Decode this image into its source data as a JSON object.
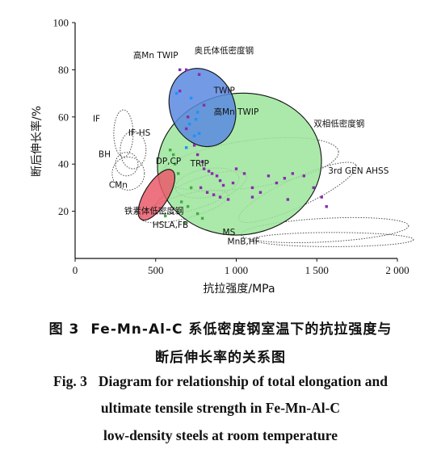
{
  "chart_data": {
    "type": "scatter",
    "xlabel": "抗拉强度/MPa",
    "ylabel": "断后伸长率/%",
    "xlim": [
      0,
      2000
    ],
    "ylim": [
      0,
      100
    ],
    "x_ticks": [
      {
        "value": 0,
        "label": "0"
      },
      {
        "value": 500,
        "label": "500"
      },
      {
        "value": 1000,
        "label": "1 000"
      },
      {
        "value": 1500,
        "label": "1 500"
      },
      {
        "value": 2000,
        "label": "2 000"
      }
    ],
    "y_ticks": [
      {
        "value": 20,
        "label": "20"
      },
      {
        "value": 40,
        "label": "40"
      },
      {
        "value": 60,
        "label": "60"
      },
      {
        "value": 80,
        "label": "80"
      },
      {
        "value": 100,
        "label": "100"
      }
    ],
    "regions": [
      {
        "name": "高Mn TWIP",
        "style": "dotted",
        "cx": 1080,
        "cy": 40,
        "rx": 560,
        "ry": 10,
        "rotate": -8
      },
      {
        "name": "MS",
        "style": "dotted",
        "cx": 1550,
        "cy": 12,
        "rx": 520,
        "ry": 5,
        "rotate": -3
      },
      {
        "name": "IF",
        "style": "dotted",
        "cx": 300,
        "cy": 53,
        "rx": 60,
        "ry": 10,
        "rotate": 0
      },
      {
        "name": "IF-HS",
        "style": "dotted",
        "cx": 360,
        "cy": 46,
        "rx": 80,
        "ry": 8,
        "rotate": 0
      },
      {
        "name": "BH",
        "style": "dotted",
        "cx": 320,
        "cy": 40,
        "rx": 70,
        "ry": 5,
        "rotate": 0
      },
      {
        "name": "CMn",
        "style": "dotted",
        "cx": 330,
        "cy": 36,
        "rx": 100,
        "ry": 7,
        "rotate": 0
      },
      {
        "name": "DP,CP",
        "style": "dotted",
        "cx": 780,
        "cy": 28,
        "rx": 300,
        "ry": 6,
        "rotate": -20
      },
      {
        "name": "TRIP",
        "style": "dotted",
        "cx": 820,
        "cy": 32,
        "rx": 200,
        "ry": 6,
        "rotate": -10
      },
      {
        "name": "HSLA,FB",
        "style": "dotted",
        "cx": 680,
        "cy": 22,
        "rx": 280,
        "ry": 5,
        "rotate": -15
      },
      {
        "name": "3rd GEN AHSS",
        "style": "dotted",
        "cx": 1380,
        "cy": 28,
        "rx": 400,
        "ry": 6,
        "rotate": -25
      },
      {
        "name": "MnB,HF",
        "style": "dotted",
        "cx": 1600,
        "cy": 8,
        "rx": 500,
        "ry": 3,
        "rotate": 0
      },
      {
        "name": "双相低密度钢",
        "style": "filled",
        "color": "#9be59b",
        "cx": 1020,
        "cy": 40,
        "rx": 510,
        "ry": 30,
        "rotate": -8
      },
      {
        "name": "奥氏体低密度钢",
        "style": "filled",
        "color": "#5b88e0",
        "cx": 790,
        "cy": 64,
        "rx": 200,
        "ry": 17,
        "rotate": -22
      },
      {
        "name": "铁素体低密度钢",
        "style": "filled",
        "color": "#ea5a6a",
        "cx": 505,
        "cy": 27,
        "rx": 180,
        "ry": 5,
        "rotate": -58
      }
    ],
    "series": [
      {
        "color": "#8a2bb0",
        "points": [
          [
            650,
            80
          ],
          [
            690,
            80
          ],
          [
            770,
            78
          ],
          [
            800,
            65
          ],
          [
            650,
            71
          ],
          [
            700,
            60
          ],
          [
            690,
            55
          ],
          [
            740,
            48
          ],
          [
            760,
            44
          ],
          [
            790,
            41
          ],
          [
            800,
            38
          ],
          [
            830,
            37
          ],
          [
            850,
            36
          ],
          [
            880,
            35
          ],
          [
            900,
            33
          ],
          [
            920,
            31
          ],
          [
            780,
            30
          ],
          [
            820,
            28
          ],
          [
            860,
            27
          ],
          [
            900,
            26
          ],
          [
            950,
            25
          ],
          [
            1000,
            38
          ],
          [
            1050,
            36
          ],
          [
            1100,
            30
          ],
          [
            1150,
            28
          ],
          [
            1200,
            35
          ],
          [
            1250,
            32
          ],
          [
            1300,
            34
          ],
          [
            1350,
            36
          ],
          [
            1420,
            35
          ],
          [
            1480,
            30
          ],
          [
            1530,
            26
          ],
          [
            1560,
            22
          ],
          [
            1320,
            25
          ],
          [
            1100,
            26
          ],
          [
            980,
            32
          ]
        ]
      },
      {
        "color": "#1e90ff",
        "points": [
          [
            630,
            70
          ],
          [
            720,
            68
          ],
          [
            740,
            52
          ],
          [
            770,
            53
          ],
          [
            710,
            57
          ],
          [
            750,
            59
          ],
          [
            690,
            47
          ],
          [
            760,
            62
          ]
        ]
      },
      {
        "color": "#44aa44",
        "points": [
          [
            590,
            46
          ],
          [
            610,
            44
          ],
          [
            620,
            40
          ],
          [
            640,
            36
          ],
          [
            660,
            24
          ],
          [
            700,
            22
          ],
          [
            760,
            19
          ],
          [
            790,
            17
          ],
          [
            560,
            18
          ],
          [
            680,
            15
          ],
          [
            720,
            30
          ]
        ]
      }
    ],
    "annotations": [
      {
        "text": "奥氏体低密度钢",
        "x": 740,
        "y": 87
      },
      {
        "text": "高Mn TWIP",
        "x": 360,
        "y": 85
      },
      {
        "text": "TWIP",
        "x": 860,
        "y": 70
      },
      {
        "text": "高Mn TWIP",
        "x": 860,
        "y": 61
      },
      {
        "text": "双相低密度钢",
        "x": 1480,
        "y": 56
      },
      {
        "text": "IF",
        "x": 110,
        "y": 58
      },
      {
        "text": "IF-HS",
        "x": 330,
        "y": 52
      },
      {
        "text": "BH",
        "x": 145,
        "y": 43
      },
      {
        "text": "DP,CP",
        "x": 500,
        "y": 40
      },
      {
        "text": "TRIP",
        "x": 715,
        "y": 39
      },
      {
        "text": "3rd GEN AHSS",
        "x": 1570,
        "y": 36
      },
      {
        "text": "CMn",
        "x": 210,
        "y": 30
      },
      {
        "text": "铁素体低密度钢",
        "x": 305,
        "y": 19
      },
      {
        "text": "HSLA,FB",
        "x": 480,
        "y": 13
      },
      {
        "text": "MS",
        "x": 915,
        "y": 10
      },
      {
        "text": "MnB,HF",
        "x": 945,
        "y": 6
      }
    ]
  },
  "caption": {
    "zh_line1_label": "图 3",
    "zh_line1": "Fe-Mn-Al-C 系低密度钢室温下的抗拉强度与",
    "zh_line2": "断后伸长率的关系图",
    "en_line1_label": "Fig. 3",
    "en_line1": "Diagram for relationship of total elongation and",
    "en_line2": "ultimate tensile strength in Fe-Mn-Al-C",
    "en_line3": "low-density steels at room temperature"
  }
}
